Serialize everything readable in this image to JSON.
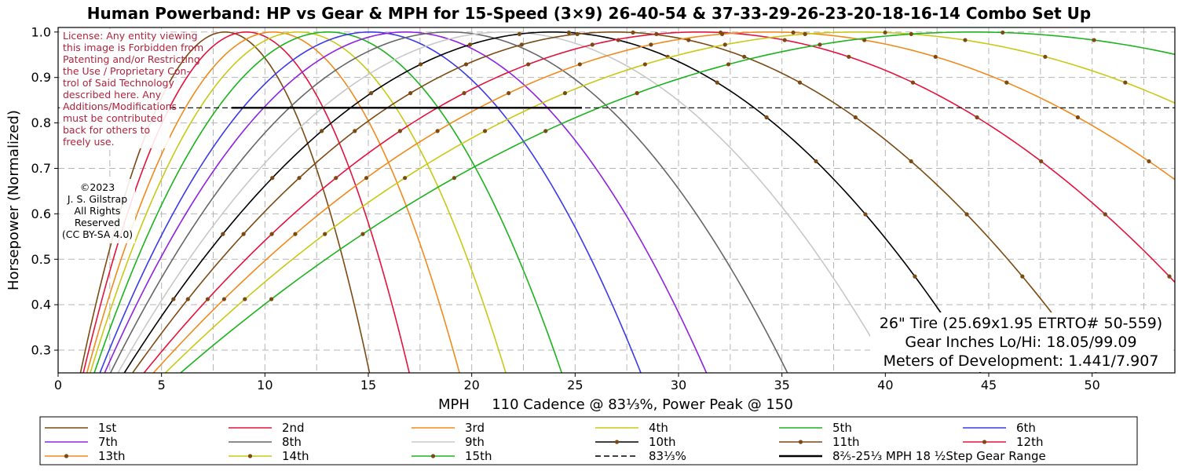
{
  "chart_data": {
    "type": "line",
    "title": "Human Powerband: HP vs Gear & MPH for 15-Speed (3×9) 26-40-54 & 37-33-29-26-23-20-18-16-14 Combo Set Up",
    "xlabel": "MPH",
    "xlabel_note": "110 Cadence @ 83⅓%, Power Peak @ 150",
    "ylabel": "Horsepower (Normalized)",
    "xlim": [
      0,
      54
    ],
    "ylim": [
      0.25,
      1.01
    ],
    "x_ticks": [
      "0",
      "5",
      "10",
      "15",
      "20",
      "25",
      "30",
      "35",
      "40",
      "45",
      "50"
    ],
    "y_ticks": [
      "0.3",
      "0.4",
      "0.5",
      "0.6",
      "0.7",
      "0.8",
      "0.9",
      "1.0"
    ],
    "grid": true,
    "legend_position": "bottom",
    "series": [
      {
        "name": "1st",
        "peak_mph": 8.07,
        "color": "#7b4a12",
        "markers": false
      },
      {
        "name": "2nd",
        "peak_mph": 9.1,
        "color": "#e3133d",
        "markers": false
      },
      {
        "name": "3rd",
        "peak_mph": 10.4,
        "color": "#f08a1c",
        "markers": false
      },
      {
        "name": "4th",
        "peak_mph": 11.6,
        "color": "#c9c817",
        "markers": false
      },
      {
        "name": "5th",
        "peak_mph": 13.05,
        "color": "#1db31d",
        "markers": false
      },
      {
        "name": "6th",
        "peak_mph": 15.1,
        "color": "#3a3ae8",
        "markers": false
      },
      {
        "name": "7th",
        "peak_mph": 16.8,
        "color": "#8f22e0",
        "markers": false
      },
      {
        "name": "8th",
        "peak_mph": 18.9,
        "color": "#666666",
        "markers": false
      },
      {
        "name": "9th",
        "peak_mph": 21.6,
        "color": "#c8c8c8",
        "markers": false
      },
      {
        "name": "10th",
        "peak_mph": 23.9,
        "color": "#000000",
        "markers": true
      },
      {
        "name": "11th",
        "peak_mph": 26.9,
        "color": "#7b4a12",
        "markers": true
      },
      {
        "name": "12th",
        "peak_mph": 31.0,
        "color": "#e3133d",
        "markers": true
      },
      {
        "name": "13th",
        "peak_mph": 34.4,
        "color": "#f08a1c",
        "markers": true
      },
      {
        "name": "14th",
        "peak_mph": 38.7,
        "color": "#c9c817",
        "markers": true
      },
      {
        "name": "15th",
        "peak_mph": 44.2,
        "color": "#1db31d",
        "markers": true
      }
    ],
    "reference_line": {
      "name": "83⅓%",
      "y": 0.8333
    },
    "gear_range": {
      "name": "8⅖-25⅓ MPH  18 ½Step Gear Range",
      "x": [
        8.4,
        25.33
      ],
      "y": 0.8333
    },
    "license_lines": [
      "License: Any entity viewing",
      "this image is Forbidden from",
      "Patenting and/or Restricting",
      "the Use / Proprietary Con-",
      "trol of Said Technology",
      "described here. Any",
      "Additions/Modifications",
      "must be contributed",
      "back for others to",
      "freely use."
    ],
    "copyright_lines": [
      "©2023",
      "J. S. Gilstrap",
      "All Rights",
      "Reserved",
      "(CC BY-SA 4.0)"
    ],
    "info_lines": [
      "26\" Tire (25.69x1.95 ETRTO# 50-559)",
      "Gear Inches Lo/Hi: 18.05/99.09",
      "Meters of Development: 1.441/7.907"
    ]
  }
}
